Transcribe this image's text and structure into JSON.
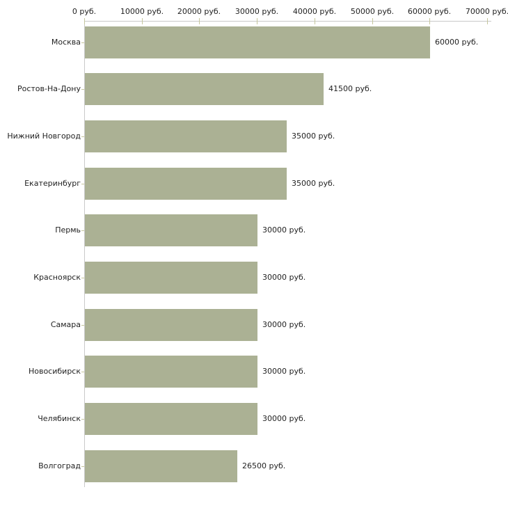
{
  "chart_data": {
    "type": "bar",
    "orientation": "horizontal",
    "title": "",
    "categories": [
      "Москва",
      "Ростов-На-Дону",
      "Нижний Новгород",
      "Екатеринбург",
      "Пермь",
      "Красноярск",
      "Самара",
      "Новосибирск",
      "Челябинск",
      "Волгоград"
    ],
    "values": [
      60000,
      41500,
      35000,
      35000,
      30000,
      30000,
      30000,
      30000,
      30000,
      26500
    ],
    "value_labels": [
      "60000 руб.",
      "41500 руб.",
      "35000 руб.",
      "35000 руб.",
      "30000 руб.",
      "30000 руб.",
      "30000 руб.",
      "30000 руб.",
      "30000 руб.",
      "26500 руб."
    ],
    "x_axis": {
      "position": "top",
      "unit": "руб.",
      "xlim": [
        0,
        70000
      ],
      "tick_values": [
        0,
        10000,
        20000,
        30000,
        40000,
        50000,
        60000,
        70000
      ],
      "tick_labels": [
        "0 руб.",
        "10000 руб.",
        "20000 руб.",
        "30000 руб.",
        "40000 руб.",
        "50000 руб.",
        "60000 руб.",
        "70000 руб."
      ]
    },
    "grid": false,
    "legend": false,
    "colors": {
      "bar": "#abb194",
      "axis_line": "#c9c9c9",
      "tick": "#c5c69c",
      "text": "#1f1f1f",
      "background": "#ffffff"
    }
  }
}
